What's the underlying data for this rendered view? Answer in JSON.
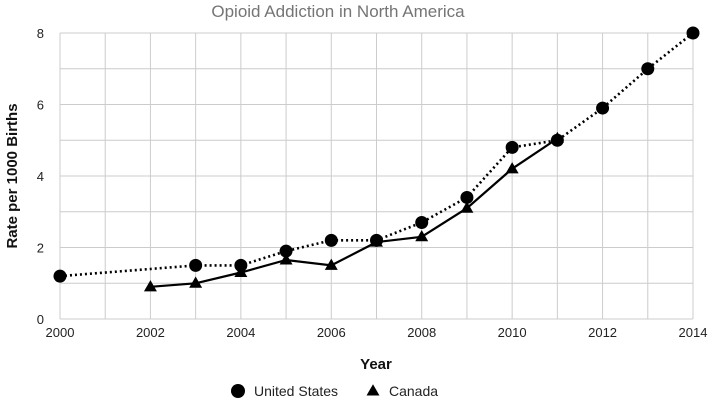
{
  "chart_data": {
    "type": "line",
    "title": "Opioid Addiction in North America",
    "xlabel": "Year",
    "ylabel": "Rate per 1000 Births",
    "xlim": [
      2000,
      2014
    ],
    "ylim": [
      0,
      8
    ],
    "x_ticks": [
      "2000",
      "2002",
      "2004",
      "2006",
      "2008",
      "2010",
      "2012",
      "2014"
    ],
    "y_ticks": [
      "0",
      "2",
      "4",
      "6",
      "8"
    ],
    "grid": true,
    "legend_position": "bottom",
    "series": [
      {
        "name": "United States",
        "marker": "circle",
        "line_style": "dotted",
        "color": "#000000",
        "x": [
          2000,
          2003,
          2004,
          2005,
          2006,
          2007,
          2008,
          2009,
          2010,
          2011,
          2012,
          2013,
          2014
        ],
        "values": [
          1.2,
          1.5,
          1.5,
          1.9,
          2.2,
          2.2,
          2.7,
          3.4,
          4.8,
          5.0,
          5.9,
          7.0,
          8.0
        ]
      },
      {
        "name": "Canada",
        "marker": "triangle",
        "line_style": "solid",
        "color": "#000000",
        "x": [
          2002,
          2003,
          2004,
          2005,
          2006,
          2007,
          2008,
          2009,
          2010,
          2011
        ],
        "values": [
          0.9,
          1.0,
          1.3,
          1.65,
          1.5,
          2.15,
          2.3,
          3.1,
          4.2,
          5.05
        ]
      }
    ]
  }
}
